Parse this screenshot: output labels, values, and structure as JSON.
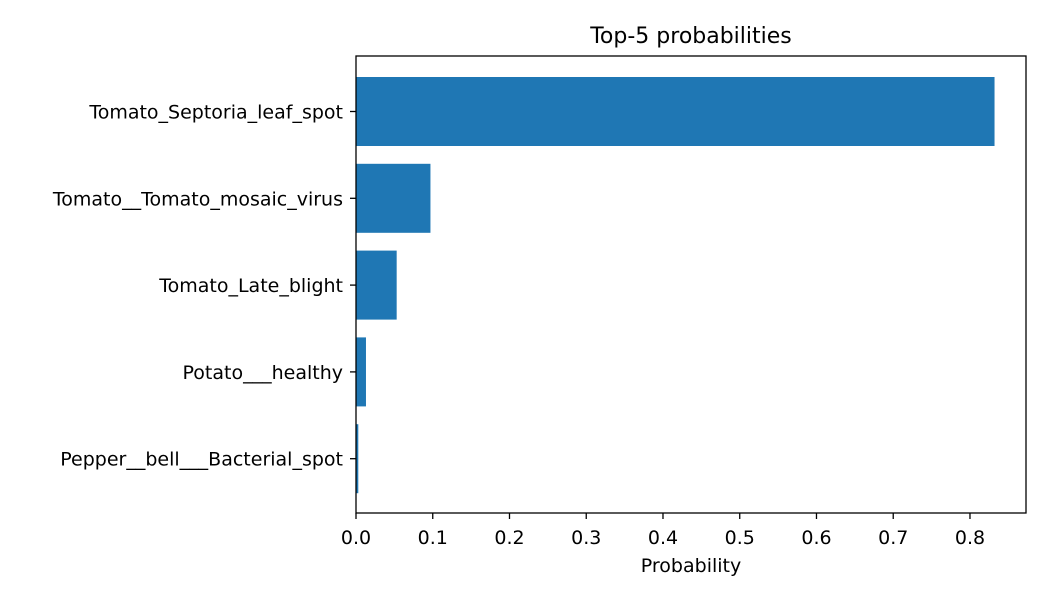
{
  "chart_data": {
    "type": "bar",
    "orientation": "horizontal",
    "title": "Top-5 probabilities",
    "xlabel": "Probability",
    "ylabel": "",
    "categories": [
      "Tomato_Septoria_leaf_spot",
      "Tomato__Tomato_mosaic_virus",
      "Tomato_Late_blight",
      "Potato___healthy",
      "Pepper__bell___Bacterial_spot"
    ],
    "values": [
      0.832,
      0.097,
      0.053,
      0.013,
      0.003
    ],
    "xlim": [
      0,
      0.873
    ],
    "xticks": [
      0.0,
      0.1,
      0.2,
      0.3,
      0.4,
      0.5,
      0.6,
      0.7,
      0.8
    ],
    "xtick_labels": [
      "0.0",
      "0.1",
      "0.2",
      "0.3",
      "0.4",
      "0.5",
      "0.6",
      "0.7",
      "0.8"
    ],
    "grid": false,
    "legend": "none",
    "bar_color": "#1f77b4",
    "axis_color": "#000000"
  }
}
